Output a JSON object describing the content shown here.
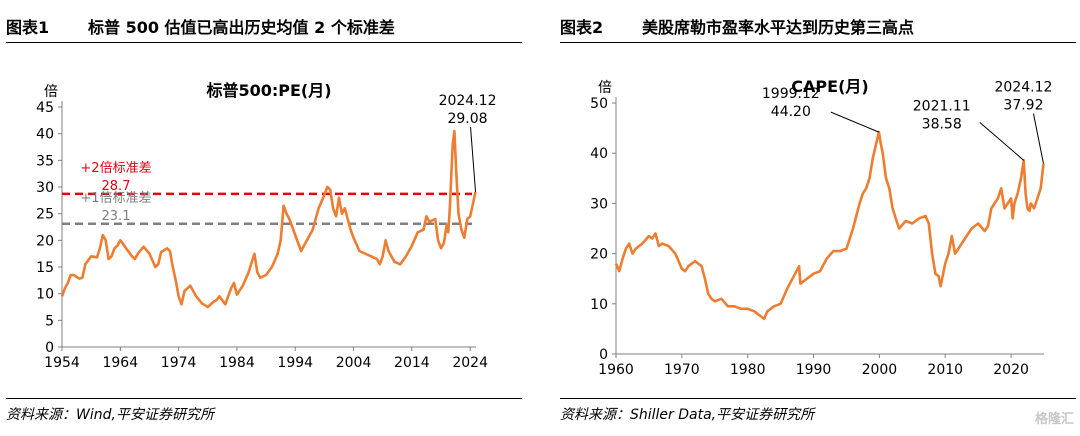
{
  "colors": {
    "series": "#ED7D31",
    "sd2": "#E60012",
    "sd1": "#7F7F7F"
  },
  "left_panel": {
    "fig_no": "图表1",
    "title": "标普 500 估值已高出历史均值 2 个标准差",
    "source": "资料来源：Wind,平安证券研究所"
  },
  "right_panel": {
    "fig_no": "图表2",
    "title": "美股席勒市盈率水平达到历史第三高点",
    "source": "资料来源：Shiller Data,平安证券研究所"
  },
  "watermark": "格隆汇",
  "chart_data": [
    {
      "type": "line",
      "title": "标普500:PE(月)",
      "ylabel": "倍",
      "ylim": [
        0,
        45
      ],
      "yticks": [
        0,
        5,
        10,
        15,
        20,
        25,
        30,
        35,
        40,
        45
      ],
      "xlim": [
        1954,
        2025
      ],
      "xticks": [
        1954,
        1964,
        1974,
        1984,
        1994,
        2004,
        2014,
        2024
      ],
      "series": [
        {
          "x": [
            1954,
            1954.5,
            1955,
            1955.5,
            1956,
            1957,
            1957.5,
            1958,
            1959,
            1960,
            1960.5,
            1961,
            1961.5,
            1962,
            1962.5,
            1963,
            1963.5,
            1964,
            1964.5,
            1965,
            1966,
            1966.5,
            1967,
            1968,
            1969,
            1970,
            1970.5,
            1971,
            1972,
            1972.5,
            1973,
            1973.5,
            1974,
            1974.5,
            1975,
            1976,
            1977,
            1978,
            1979,
            1980,
            1980.5,
            1981,
            1982,
            1983,
            1983.5,
            1984,
            1985,
            1986,
            1987,
            1987.5,
            1988,
            1989,
            1990,
            1991,
            1991.5,
            1992,
            1992.5,
            1993,
            1994,
            1995,
            1996,
            1997,
            1998,
            1999,
            1999.5,
            2000,
            2000.5,
            2001,
            2001.5,
            2002,
            2002.5,
            2003,
            2003.5,
            2004,
            2005,
            2006,
            2007,
            2008,
            2008.5,
            2009,
            2009.5,
            2010,
            2011,
            2012,
            2013,
            2014,
            2015,
            2016,
            2016.5,
            2017,
            2018,
            2018.5,
            2019,
            2019.5,
            2020,
            2020.25,
            2020.5,
            2021,
            2021.3,
            2021.6,
            2022,
            2022.5,
            2023,
            2023.5,
            2024,
            2024.5,
            2024.92
          ],
          "y": [
            9.5,
            11,
            12,
            13.5,
            13.5,
            12.8,
            13,
            15.5,
            17,
            16.8,
            18.5,
            21,
            20,
            16.5,
            17,
            18.5,
            19,
            20,
            19.3,
            18.5,
            17,
            16.5,
            17.5,
            18.8,
            17.5,
            15,
            15.5,
            17.8,
            18.5,
            18,
            15,
            12.5,
            9.5,
            8,
            10.5,
            11.5,
            9.5,
            8.2,
            7.5,
            8.5,
            8.8,
            9.5,
            8,
            11,
            12,
            9.8,
            11.5,
            14,
            17.5,
            14,
            13,
            13.5,
            15,
            17.5,
            20,
            26.5,
            25,
            24,
            21,
            18,
            20,
            22,
            26,
            28.5,
            30,
            29.5,
            26,
            24.5,
            28,
            25,
            26,
            24,
            22,
            20.5,
            18,
            17.5,
            17,
            16.5,
            15.5,
            17,
            20,
            18,
            16,
            15.5,
            17,
            19,
            21.5,
            22,
            24.5,
            23.5,
            24,
            20,
            18.5,
            19.5,
            23,
            21.5,
            26,
            38,
            40.5,
            33,
            25,
            22,
            20.5,
            24,
            24.5,
            27,
            29.08
          ]
        }
      ],
      "reference_lines": [
        {
          "label": "+2倍标准差",
          "value": 28.7
        },
        {
          "label": "+1倍标准差",
          "value": 23.1
        }
      ],
      "annotations": [
        {
          "date": "2024.12",
          "value": "29.08",
          "x": 2024.92,
          "y": 29.08
        }
      ]
    },
    {
      "type": "line",
      "title": "CAPE(月)",
      "ylabel": "倍",
      "ylim": [
        0,
        50
      ],
      "yticks": [
        0,
        10,
        20,
        30,
        40,
        50
      ],
      "xlim": [
        1960,
        2025
      ],
      "xticks": [
        1960,
        1970,
        1980,
        1990,
        2000,
        2010,
        2020
      ],
      "series": [
        {
          "x": [
            1960,
            1960.5,
            1961,
            1961.5,
            1962,
            1962.5,
            1963,
            1964,
            1965,
            1965.5,
            1966,
            1966.5,
            1967,
            1968,
            1969,
            1970,
            1970.5,
            1971,
            1972,
            1973,
            1973.5,
            1974,
            1974.5,
            1975,
            1976,
            1977,
            1978,
            1979,
            1980,
            1981,
            1982,
            1982.5,
            1983,
            1984,
            1985,
            1986,
            1987,
            1987.8,
            1988,
            1989,
            1990,
            1991,
            1992,
            1993,
            1994,
            1995,
            1996,
            1997,
            1997.5,
            1998,
            1998.5,
            1999,
            1999.92,
            2000.2,
            2000.5,
            2001,
            2001.5,
            2002,
            2002.5,
            2003,
            2004,
            2005,
            2006,
            2007,
            2007.5,
            2008,
            2008.5,
            2009,
            2009.3,
            2010,
            2010.5,
            2011,
            2011.5,
            2012,
            2013,
            2014,
            2015,
            2016,
            2016.5,
            2017,
            2018,
            2018.5,
            2019,
            2019.5,
            2020,
            2020.25,
            2020.5,
            2021,
            2021.5,
            2021.92,
            2022.2,
            2022.5,
            2022.8,
            2023,
            2023.5,
            2024,
            2024.5,
            2024.92
          ],
          "y": [
            18,
            16.5,
            19,
            21,
            22,
            20,
            21,
            22,
            23.5,
            23,
            24,
            21.5,
            22,
            21.5,
            20,
            17,
            16.5,
            17.5,
            18.5,
            17.5,
            15,
            12,
            11,
            10.5,
            11,
            9.5,
            9.5,
            9,
            9,
            8.5,
            7.5,
            7,
            8.5,
            9.5,
            10,
            13,
            15.5,
            17.5,
            14,
            15,
            16,
            16.5,
            19,
            20.5,
            20.5,
            21,
            25,
            30,
            32,
            33,
            35,
            39,
            44.2,
            42,
            40,
            35,
            33,
            29,
            27,
            25,
            26.5,
            26,
            27,
            27.5,
            26,
            20,
            16,
            15.5,
            13.5,
            18,
            20,
            23.5,
            20,
            21,
            23,
            25,
            26,
            24.5,
            25.5,
            29,
            31,
            33,
            29,
            30,
            31,
            27,
            30,
            32,
            35,
            38.58,
            32,
            29,
            28.5,
            30,
            29,
            31,
            33,
            37.92
          ]
        }
      ],
      "annotations": [
        {
          "date": "1999.12",
          "value": "44.20",
          "x": 1999.92,
          "y": 44.2
        },
        {
          "date": "2021.11",
          "value": "38.58",
          "x": 2021.92,
          "y": 38.58
        },
        {
          "date": "2024.12",
          "value": "37.92",
          "x": 2024.92,
          "y": 37.92
        }
      ]
    }
  ]
}
